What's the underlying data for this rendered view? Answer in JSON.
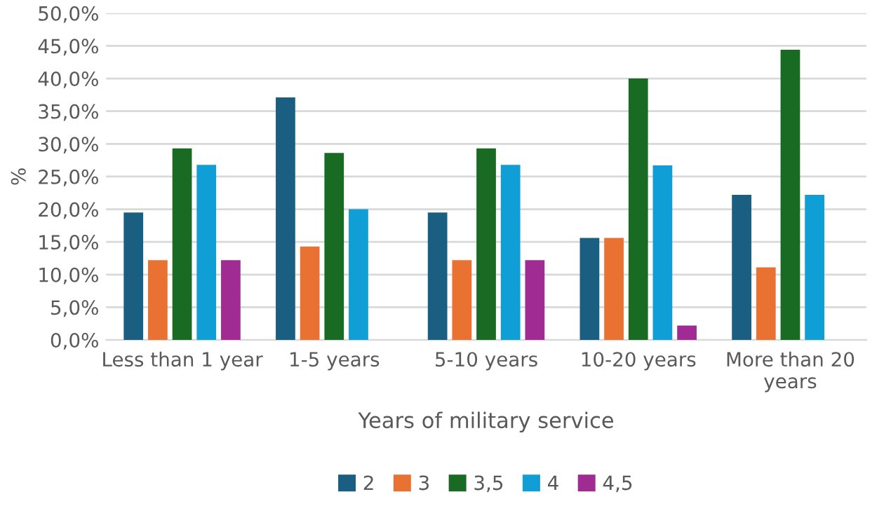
{
  "chart_data": {
    "type": "bar",
    "xlabel": "Years of military service",
    "ylabel": "%",
    "categories": [
      "Less than 1 year",
      "1-5 years",
      "5-10 years",
      "10-20 years",
      "More than 20 years"
    ],
    "series": [
      {
        "name": "2",
        "color": "#1a5e82",
        "values": [
          19.5,
          37.1,
          19.5,
          15.6,
          22.2
        ]
      },
      {
        "name": "3",
        "color": "#e97132",
        "values": [
          12.2,
          14.3,
          12.2,
          15.6,
          11.1
        ]
      },
      {
        "name": "3,5",
        "color": "#196b24",
        "values": [
          29.3,
          28.6,
          29.3,
          40.0,
          44.4
        ]
      },
      {
        "name": "4",
        "color": "#0f9ed5",
        "values": [
          26.8,
          20.0,
          26.8,
          26.7,
          22.2
        ]
      },
      {
        "name": "4,5",
        "color": "#a02b93",
        "values": [
          12.2,
          null,
          12.2,
          2.2,
          null
        ]
      }
    ],
    "ylim": [
      0,
      50
    ],
    "yticks": [
      {
        "value": 0,
        "label": "0,0%"
      },
      {
        "value": 5,
        "label": "5,0%"
      },
      {
        "value": 10,
        "label": "10,0%"
      },
      {
        "value": 15,
        "label": "15,0%"
      },
      {
        "value": 20,
        "label": "20,0%"
      },
      {
        "value": 25,
        "label": "25,0%"
      },
      {
        "value": 30,
        "label": "30,0%"
      },
      {
        "value": 35,
        "label": "35,0%"
      },
      {
        "value": 40,
        "label": "40,0%"
      },
      {
        "value": 45,
        "label": "45,0%"
      },
      {
        "value": 50,
        "label": "50,0%"
      }
    ],
    "grid": "y",
    "legend": "bottom"
  }
}
